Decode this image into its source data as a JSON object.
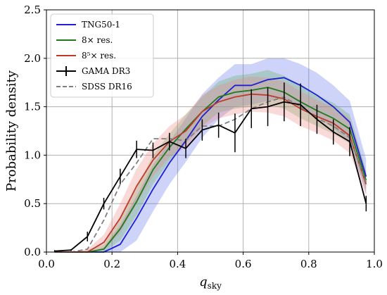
{
  "chart_data": {
    "type": "line",
    "xlabel": "q",
    "xlabel_sub": "sky",
    "ylabel": "Probability density",
    "xlim": [
      0.0,
      1.0
    ],
    "ylim": [
      0.0,
      2.5
    ],
    "xticks": [
      "0.0",
      "0.2",
      "0.4",
      "0.6",
      "0.8",
      "1.0"
    ],
    "yticks": [
      "0.0",
      "0.5",
      "1.0",
      "1.5",
      "2.0",
      "2.5"
    ],
    "grid": true,
    "legend_position": "top-left",
    "x": [
      0.025,
      0.075,
      0.125,
      0.175,
      0.225,
      0.275,
      0.325,
      0.375,
      0.425,
      0.475,
      0.525,
      0.575,
      0.625,
      0.675,
      0.725,
      0.775,
      0.825,
      0.875,
      0.925,
      0.975
    ],
    "series": [
      {
        "name": "TNG50-1",
        "color": "#1f1fd4",
        "band_color": "#5c6cf0",
        "style": "solid",
        "values": [
          0.0,
          0.0,
          0.0,
          0.0,
          0.08,
          0.35,
          0.65,
          0.92,
          1.15,
          1.4,
          1.57,
          1.72,
          1.72,
          1.78,
          1.8,
          1.72,
          1.62,
          1.5,
          1.34,
          0.78
        ],
        "band_low": [
          0.0,
          0.0,
          0.0,
          0.0,
          0.0,
          0.12,
          0.42,
          0.7,
          0.93,
          1.18,
          1.37,
          1.5,
          1.52,
          1.56,
          1.58,
          1.5,
          1.4,
          1.28,
          1.12,
          0.6
        ],
        "band_high": [
          0.0,
          0.0,
          0.0,
          0.05,
          0.28,
          0.58,
          0.9,
          1.14,
          1.38,
          1.63,
          1.8,
          1.94,
          1.94,
          2.0,
          2.0,
          1.94,
          1.85,
          1.72,
          1.56,
          0.96
        ]
      },
      {
        "name": "8× res.",
        "color": "#1f7a1f",
        "band_color": "#55b055",
        "style": "solid",
        "values": [
          0.0,
          0.0,
          0.0,
          0.03,
          0.24,
          0.52,
          0.85,
          1.08,
          1.27,
          1.45,
          1.6,
          1.65,
          1.67,
          1.7,
          1.65,
          1.55,
          1.46,
          1.38,
          1.27,
          0.74
        ],
        "band_low": [
          0.0,
          0.0,
          0.0,
          0.0,
          0.12,
          0.38,
          0.7,
          0.94,
          1.12,
          1.3,
          1.44,
          1.48,
          1.5,
          1.52,
          1.48,
          1.38,
          1.3,
          1.22,
          1.12,
          0.64
        ],
        "band_high": [
          0.0,
          0.0,
          0.02,
          0.08,
          0.36,
          0.66,
          1.0,
          1.22,
          1.42,
          1.6,
          1.76,
          1.82,
          1.84,
          1.88,
          1.82,
          1.72,
          1.62,
          1.54,
          1.42,
          0.84
        ]
      },
      {
        "name": "8⁵× res.",
        "color": "#c0392b",
        "band_color": "#f08080",
        "style": "solid",
        "values": [
          0.0,
          0.0,
          0.0,
          0.1,
          0.35,
          0.68,
          0.95,
          1.14,
          1.25,
          1.45,
          1.55,
          1.6,
          1.63,
          1.62,
          1.58,
          1.48,
          1.4,
          1.33,
          1.2,
          0.7
        ],
        "band_low": [
          0.0,
          0.0,
          0.0,
          0.02,
          0.2,
          0.5,
          0.78,
          0.98,
          1.08,
          1.28,
          1.38,
          1.42,
          1.45,
          1.44,
          1.4,
          1.3,
          1.23,
          1.15,
          1.02,
          0.58
        ],
        "band_high": [
          0.0,
          0.0,
          0.03,
          0.18,
          0.5,
          0.86,
          1.12,
          1.3,
          1.42,
          1.62,
          1.72,
          1.78,
          1.81,
          1.8,
          1.76,
          1.66,
          1.57,
          1.5,
          1.38,
          0.82
        ]
      },
      {
        "name": "GAMA DR3",
        "color": "#000000",
        "style": "errorbar",
        "values": [
          0.01,
          0.02,
          0.16,
          0.5,
          0.78,
          1.06,
          1.05,
          1.14,
          1.07,
          1.26,
          1.31,
          1.23,
          1.48,
          1.5,
          1.55,
          1.52,
          1.37,
          1.24,
          1.14,
          0.5
        ],
        "errors": [
          0.01,
          0.01,
          0.05,
          0.06,
          0.08,
          0.09,
          0.08,
          0.09,
          0.1,
          0.11,
          0.13,
          0.2,
          0.2,
          0.2,
          0.2,
          0.22,
          0.15,
          0.13,
          0.15,
          0.08
        ]
      },
      {
        "name": "SDSS DR16",
        "color": "#808080",
        "style": "dashed",
        "values": [
          0.0,
          0.0,
          0.03,
          0.33,
          0.7,
          0.92,
          1.17,
          1.17,
          1.15,
          1.3,
          1.3,
          1.37,
          1.48,
          1.55,
          1.6,
          1.5,
          1.38,
          1.3,
          1.18,
          0.72
        ]
      }
    ]
  }
}
